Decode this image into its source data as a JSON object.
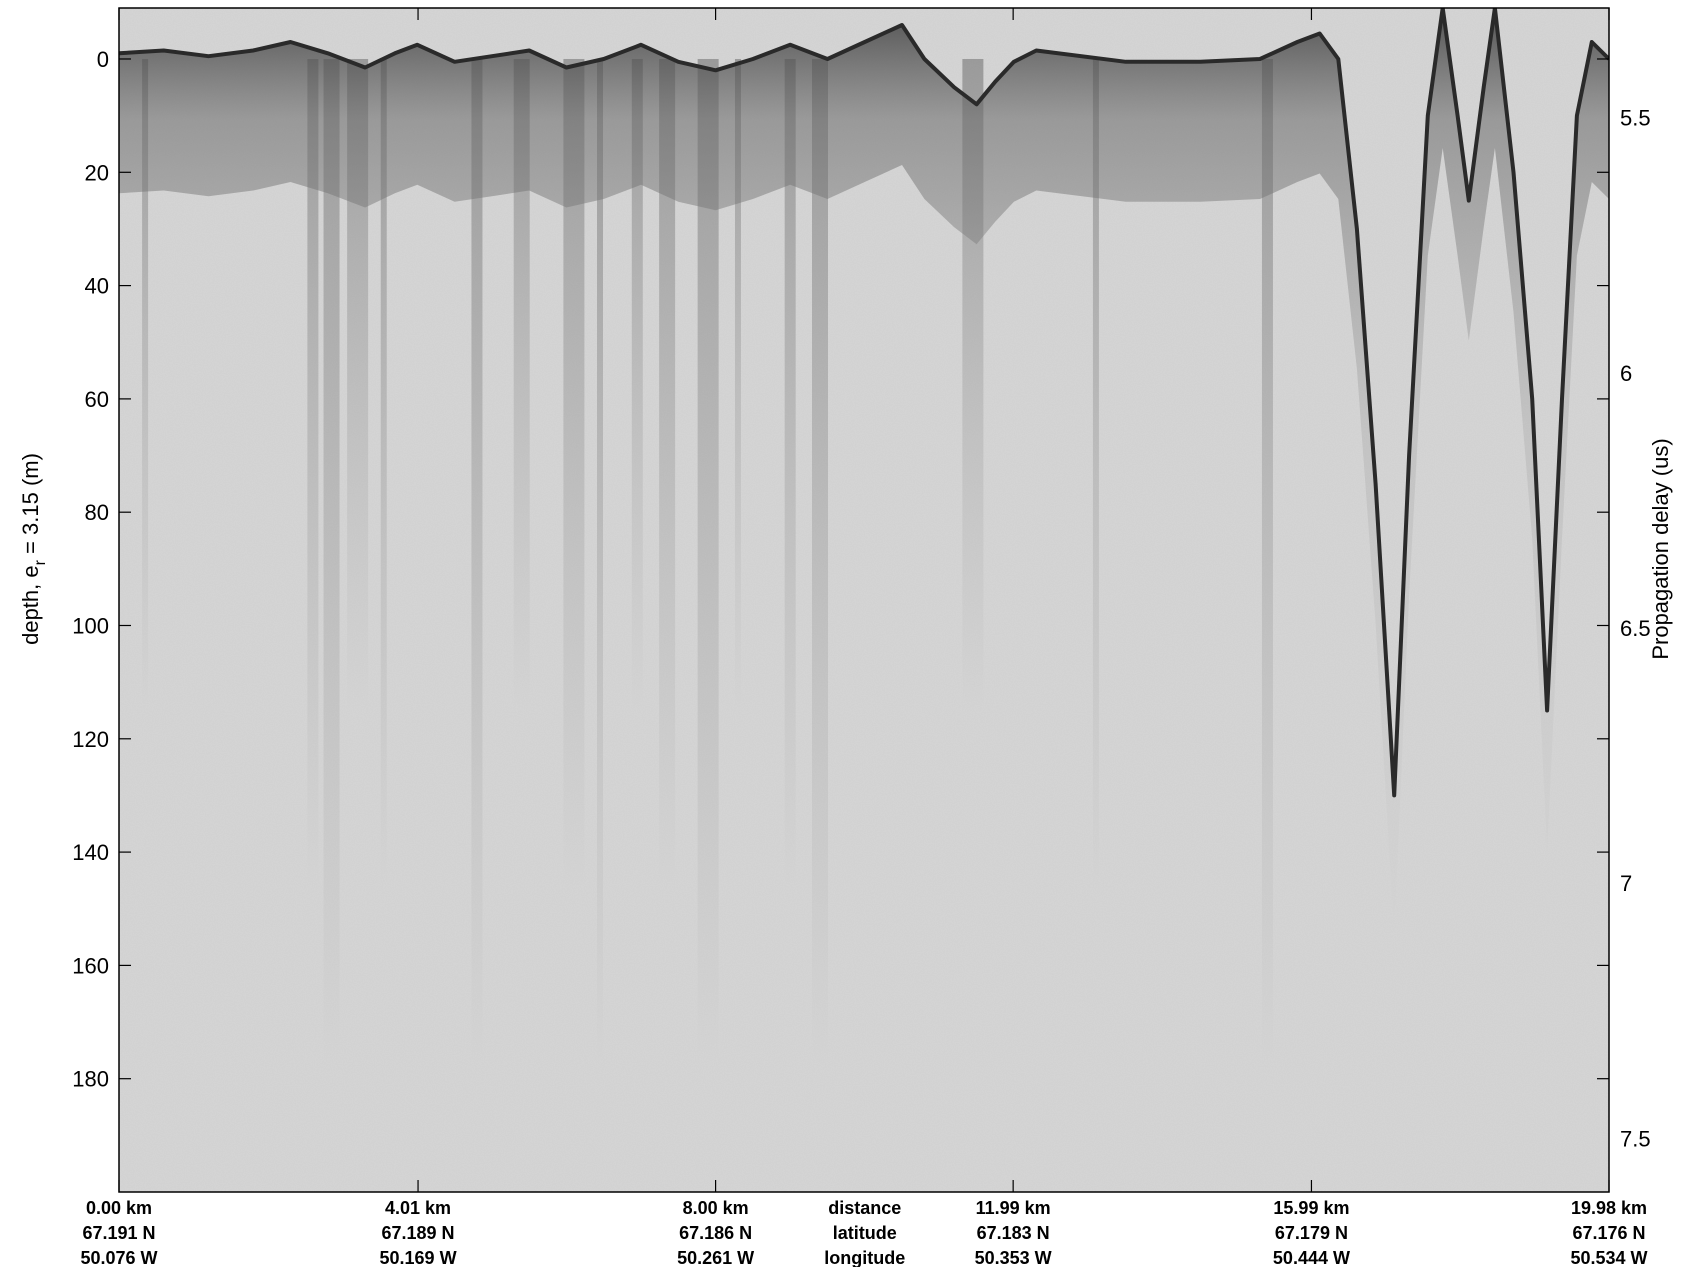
{
  "chart_data": {
    "type": "heatmap",
    "title": "",
    "colormap": "grayscale",
    "ylabel": {
      "main": "depth, e",
      "subscript": "r",
      "suffix": " = 3.15 (m)"
    },
    "y2label": "Propagation delay (us)",
    "xlim": [
      0.0,
      19.98
    ],
    "ylim": [
      -9,
      200
    ],
    "y_reversed": true,
    "grid": false,
    "left_ticks": [
      {
        "value": 0,
        "label": "0"
      },
      {
        "value": 20,
        "label": "20"
      },
      {
        "value": 40,
        "label": "40"
      },
      {
        "value": 60,
        "label": "60"
      },
      {
        "value": 80,
        "label": "80"
      },
      {
        "value": 100,
        "label": "100"
      },
      {
        "value": 120,
        "label": "120"
      },
      {
        "value": 140,
        "label": "140"
      },
      {
        "value": 160,
        "label": "160"
      },
      {
        "value": 180,
        "label": "180"
      }
    ],
    "right_ticks": [
      {
        "value": 5.5,
        "label": "5.5"
      },
      {
        "value": 6,
        "label": "6"
      },
      {
        "value": 6.5,
        "label": "6.5"
      },
      {
        "value": 7,
        "label": "7"
      },
      {
        "value": 7.5,
        "label": "7.5"
      }
    ],
    "right_axis_range": [
      5.285,
      7.605
    ],
    "bottom_ticks": [
      {
        "value": 0.0,
        "lines": [
          "0.00 km",
          "67.191 N",
          "50.076 W"
        ]
      },
      {
        "value": 4.01,
        "lines": [
          "4.01 km",
          "67.189 N",
          "50.169 W"
        ]
      },
      {
        "value": 8.0,
        "lines": [
          "8.00 km",
          "67.186 N",
          "50.261 W"
        ]
      },
      {
        "value": 11.99,
        "lines": [
          "11.99 km",
          "67.183 N",
          "50.353 W"
        ]
      },
      {
        "value": 15.99,
        "lines": [
          "15.99 km",
          "67.179 N",
          "50.444 W"
        ]
      },
      {
        "value": 19.98,
        "lines": [
          "19.98 km",
          "67.176 N",
          "50.534 W"
        ]
      }
    ],
    "bottom_legend": {
      "position_km": 10.0,
      "lines": [
        "distance",
        "latitude",
        "longitude"
      ]
    },
    "surface_profile": [
      {
        "x": 0.0,
        "y": -1.0
      },
      {
        "x": 0.6,
        "y": -1.5
      },
      {
        "x": 1.2,
        "y": -0.5
      },
      {
        "x": 1.8,
        "y": -1.5
      },
      {
        "x": 2.3,
        "y": -3.0
      },
      {
        "x": 2.8,
        "y": -1.0
      },
      {
        "x": 3.3,
        "y": 1.5
      },
      {
        "x": 3.7,
        "y": -1.0
      },
      {
        "x": 4.0,
        "y": -2.5
      },
      {
        "x": 4.5,
        "y": 0.5
      },
      {
        "x": 5.0,
        "y": -0.5
      },
      {
        "x": 5.5,
        "y": -1.5
      },
      {
        "x": 6.0,
        "y": 1.5
      },
      {
        "x": 6.5,
        "y": 0.0
      },
      {
        "x": 7.0,
        "y": -2.5
      },
      {
        "x": 7.5,
        "y": 0.5
      },
      {
        "x": 8.0,
        "y": 2.0
      },
      {
        "x": 8.5,
        "y": 0.0
      },
      {
        "x": 9.0,
        "y": -2.5
      },
      {
        "x": 9.5,
        "y": 0.0
      },
      {
        "x": 10.0,
        "y": -3.0
      },
      {
        "x": 10.5,
        "y": -6.0
      },
      {
        "x": 10.8,
        "y": 0.0
      },
      {
        "x": 11.2,
        "y": 5.0
      },
      {
        "x": 11.5,
        "y": 8.0
      },
      {
        "x": 11.75,
        "y": 4.0
      },
      {
        "x": 12.0,
        "y": 0.5
      },
      {
        "x": 12.3,
        "y": -1.5
      },
      {
        "x": 13.5,
        "y": 0.5
      },
      {
        "x": 14.5,
        "y": 0.5
      },
      {
        "x": 15.3,
        "y": 0.0
      },
      {
        "x": 15.8,
        "y": -3.0
      },
      {
        "x": 16.1,
        "y": -4.5
      },
      {
        "x": 16.35,
        "y": 0.0
      },
      {
        "x": 16.6,
        "y": 30.0
      },
      {
        "x": 16.85,
        "y": 75.0
      },
      {
        "x": 17.1,
        "y": 130.0
      },
      {
        "x": 17.3,
        "y": 70.0
      },
      {
        "x": 17.55,
        "y": 10.0
      },
      {
        "x": 17.75,
        "y": -9.0
      },
      {
        "x": 17.95,
        "y": 10.0
      },
      {
        "x": 18.1,
        "y": 25.0
      },
      {
        "x": 18.3,
        "y": 5.0
      },
      {
        "x": 18.45,
        "y": -9.0
      },
      {
        "x": 18.7,
        "y": 20.0
      },
      {
        "x": 18.95,
        "y": 60.0
      },
      {
        "x": 19.15,
        "y": 115.0
      },
      {
        "x": 19.35,
        "y": 60.0
      },
      {
        "x": 19.55,
        "y": 10.0
      },
      {
        "x": 19.75,
        "y": -3.0
      },
      {
        "x": 19.98,
        "y": 0.0
      }
    ],
    "vertical_streaks_km": [
      0.35,
      2.6,
      2.85,
      3.2,
      3.55,
      4.8,
      5.4,
      6.1,
      6.45,
      6.95,
      7.35,
      7.9,
      8.3,
      9.0,
      9.4,
      11.45,
      13.1,
      15.4
    ]
  }
}
